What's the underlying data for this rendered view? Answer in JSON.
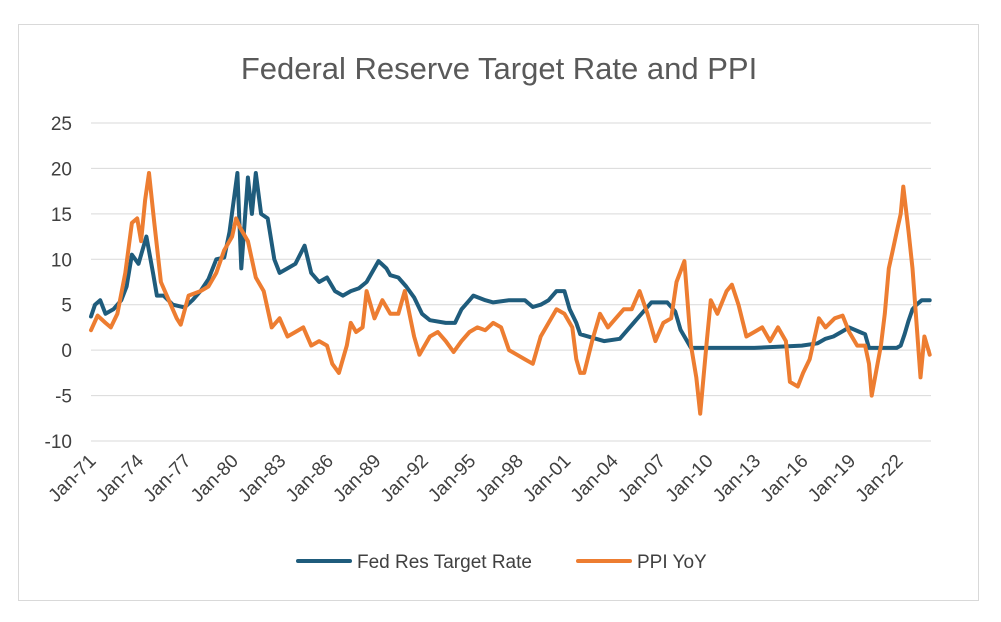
{
  "chart_data": {
    "type": "line",
    "title": "Federal Reserve Target Rate and PPI",
    "xlabel": "",
    "ylabel": "",
    "ylim": [
      -10,
      25
    ],
    "yticks": [
      25,
      20,
      15,
      10,
      5,
      0,
      -5,
      -10
    ],
    "xticks": [
      "Jan-71",
      "Jan-74",
      "Jan-77",
      "Jan-80",
      "Jan-83",
      "Jan-86",
      "Jan-89",
      "Jan-92",
      "Jan-95",
      "Jan-98",
      "Jan-01",
      "Jan-04",
      "Jan-07",
      "Jan-10",
      "Jan-13",
      "Jan-16",
      "Jan-19",
      "Jan-22"
    ],
    "grid": true,
    "legend_position": "bottom",
    "series": [
      {
        "name": "Fed Res Target Rate",
        "color": "#1f5c7c",
        "points": [
          [
            "1971-01",
            3.7
          ],
          [
            "1971-04",
            5.0
          ],
          [
            "1971-08",
            5.5
          ],
          [
            "1971-12",
            4.0
          ],
          [
            "1972-06",
            4.5
          ],
          [
            "1972-12",
            5.5
          ],
          [
            "1973-04",
            7.0
          ],
          [
            "1973-08",
            10.5
          ],
          [
            "1974-01",
            9.5
          ],
          [
            "1974-07",
            12.5
          ],
          [
            "1974-12",
            8.5
          ],
          [
            "1975-03",
            6.0
          ],
          [
            "1975-08",
            6.0
          ],
          [
            "1976-03",
            5.0
          ],
          [
            "1976-12",
            4.7
          ],
          [
            "1977-06",
            5.5
          ],
          [
            "1977-12",
            6.5
          ],
          [
            "1978-06",
            7.8
          ],
          [
            "1978-12",
            10.0
          ],
          [
            "1979-06",
            10.2
          ],
          [
            "1979-10",
            13.0
          ],
          [
            "1980-04",
            19.5
          ],
          [
            "1980-07",
            9.0
          ],
          [
            "1980-12",
            19.0
          ],
          [
            "1981-03",
            15.0
          ],
          [
            "1981-06",
            19.5
          ],
          [
            "1981-10",
            15.0
          ],
          [
            "1982-03",
            14.5
          ],
          [
            "1982-08",
            10.0
          ],
          [
            "1982-12",
            8.5
          ],
          [
            "1983-06",
            9.0
          ],
          [
            "1983-12",
            9.5
          ],
          [
            "1984-07",
            11.5
          ],
          [
            "1984-12",
            8.5
          ],
          [
            "1985-06",
            7.5
          ],
          [
            "1985-12",
            8.0
          ],
          [
            "1986-06",
            6.5
          ],
          [
            "1986-12",
            6.0
          ],
          [
            "1987-06",
            6.5
          ],
          [
            "1987-12",
            6.8
          ],
          [
            "1988-06",
            7.5
          ],
          [
            "1989-03",
            9.8
          ],
          [
            "1989-09",
            9.0
          ],
          [
            "1989-12",
            8.25
          ],
          [
            "1990-06",
            8.0
          ],
          [
            "1990-12",
            7.0
          ],
          [
            "1991-06",
            5.8
          ],
          [
            "1991-12",
            4.0
          ],
          [
            "1992-06",
            3.3
          ],
          [
            "1993-06",
            3.0
          ],
          [
            "1994-01",
            3.0
          ],
          [
            "1994-06",
            4.5
          ],
          [
            "1994-12",
            5.5
          ],
          [
            "1995-03",
            6.0
          ],
          [
            "1995-12",
            5.5
          ],
          [
            "1996-06",
            5.25
          ],
          [
            "1997-06",
            5.5
          ],
          [
            "1998-06",
            5.5
          ],
          [
            "1998-12",
            4.75
          ],
          [
            "1999-06",
            5.0
          ],
          [
            "1999-12",
            5.5
          ],
          [
            "2000-06",
            6.5
          ],
          [
            "2000-12",
            6.5
          ],
          [
            "2001-04",
            4.5
          ],
          [
            "2001-09",
            3.0
          ],
          [
            "2001-12",
            1.75
          ],
          [
            "2002-12",
            1.25
          ],
          [
            "2003-06",
            1.0
          ],
          [
            "2004-06",
            1.25
          ],
          [
            "2004-12",
            2.25
          ],
          [
            "2005-06",
            3.25
          ],
          [
            "2005-12",
            4.25
          ],
          [
            "2006-06",
            5.25
          ],
          [
            "2007-06",
            5.25
          ],
          [
            "2007-12",
            4.25
          ],
          [
            "2008-04",
            2.25
          ],
          [
            "2008-12",
            0.25
          ],
          [
            "2012-12",
            0.25
          ],
          [
            "2015-12",
            0.5
          ],
          [
            "2016-12",
            0.75
          ],
          [
            "2017-06",
            1.25
          ],
          [
            "2017-12",
            1.5
          ],
          [
            "2018-06",
            2.0
          ],
          [
            "2018-12",
            2.5
          ],
          [
            "2019-08",
            2.0
          ],
          [
            "2019-12",
            1.75
          ],
          [
            "2020-03",
            0.25
          ],
          [
            "2021-12",
            0.25
          ],
          [
            "2022-03",
            0.5
          ],
          [
            "2022-06",
            1.75
          ],
          [
            "2022-09",
            3.25
          ],
          [
            "2022-12",
            4.5
          ],
          [
            "2023-03",
            5.0
          ],
          [
            "2023-07",
            5.5
          ],
          [
            "2024-01",
            5.5
          ]
        ]
      },
      {
        "name": "PPI YoY",
        "color": "#ed7d31",
        "points": [
          [
            "1971-01",
            2.2
          ],
          [
            "1971-06",
            3.8
          ],
          [
            "1971-12",
            3.0
          ],
          [
            "1972-04",
            2.5
          ],
          [
            "1972-09",
            4.0
          ],
          [
            "1973-03",
            8.5
          ],
          [
            "1973-08",
            14.0
          ],
          [
            "1973-12",
            14.5
          ],
          [
            "1974-03",
            12.0
          ],
          [
            "1974-06",
            16.5
          ],
          [
            "1974-09",
            19.5
          ],
          [
            "1975-01",
            14.0
          ],
          [
            "1975-06",
            7.5
          ],
          [
            "1975-12",
            5.5
          ],
          [
            "1976-06",
            3.5
          ],
          [
            "1976-09",
            2.8
          ],
          [
            "1977-03",
            6.0
          ],
          [
            "1977-12",
            6.5
          ],
          [
            "1978-06",
            7.0
          ],
          [
            "1978-12",
            8.5
          ],
          [
            "1979-06",
            11.0
          ],
          [
            "1979-12",
            12.5
          ],
          [
            "1980-03",
            14.5
          ],
          [
            "1980-06",
            13.5
          ],
          [
            "1980-12",
            12.0
          ],
          [
            "1981-06",
            8.0
          ],
          [
            "1981-12",
            6.5
          ],
          [
            "1982-06",
            2.5
          ],
          [
            "1982-12",
            3.5
          ],
          [
            "1983-06",
            1.5
          ],
          [
            "1983-12",
            2.0
          ],
          [
            "1984-06",
            2.5
          ],
          [
            "1984-12",
            0.5
          ],
          [
            "1985-06",
            1.0
          ],
          [
            "1985-12",
            0.5
          ],
          [
            "1986-04",
            -1.5
          ],
          [
            "1986-09",
            -2.5
          ],
          [
            "1987-03",
            0.5
          ],
          [
            "1987-06",
            3.0
          ],
          [
            "1987-10",
            2.0
          ],
          [
            "1988-03",
            2.5
          ],
          [
            "1988-06",
            6.5
          ],
          [
            "1988-12",
            3.5
          ],
          [
            "1989-06",
            5.5
          ],
          [
            "1989-12",
            4.0
          ],
          [
            "1990-06",
            4.0
          ],
          [
            "1990-11",
            6.5
          ],
          [
            "1991-06",
            1.5
          ],
          [
            "1991-10",
            -0.5
          ],
          [
            "1992-06",
            1.5
          ],
          [
            "1992-12",
            2.0
          ],
          [
            "1993-06",
            1.0
          ],
          [
            "1993-12",
            -0.2
          ],
          [
            "1994-06",
            1.0
          ],
          [
            "1994-12",
            2.0
          ],
          [
            "1995-06",
            2.5
          ],
          [
            "1995-12",
            2.2
          ],
          [
            "1996-06",
            3.0
          ],
          [
            "1996-12",
            2.5
          ],
          [
            "1997-06",
            0.0
          ],
          [
            "1997-12",
            -0.5
          ],
          [
            "1998-06",
            -1.0
          ],
          [
            "1998-12",
            -1.5
          ],
          [
            "1999-06",
            1.5
          ],
          [
            "1999-12",
            3.0
          ],
          [
            "2000-06",
            4.5
          ],
          [
            "2000-12",
            4.0
          ],
          [
            "2001-06",
            2.5
          ],
          [
            "2001-09",
            -1.0
          ],
          [
            "2001-12",
            -2.5
          ],
          [
            "2002-03",
            -2.5
          ],
          [
            "2002-09",
            1.0
          ],
          [
            "2003-03",
            4.0
          ],
          [
            "2003-09",
            2.5
          ],
          [
            "2004-03",
            3.5
          ],
          [
            "2004-09",
            4.5
          ],
          [
            "2005-03",
            4.5
          ],
          [
            "2005-09",
            6.5
          ],
          [
            "2006-03",
            4.0
          ],
          [
            "2006-09",
            1.0
          ],
          [
            "2007-03",
            3.0
          ],
          [
            "2007-09",
            3.5
          ],
          [
            "2008-01",
            7.5
          ],
          [
            "2008-07",
            9.8
          ],
          [
            "2008-12",
            0.5
          ],
          [
            "2009-04",
            -3.0
          ],
          [
            "2009-07",
            -7.0
          ],
          [
            "2009-12",
            1.0
          ],
          [
            "2010-03",
            5.5
          ],
          [
            "2010-08",
            4.0
          ],
          [
            "2011-03",
            6.5
          ],
          [
            "2011-07",
            7.2
          ],
          [
            "2011-12",
            5.0
          ],
          [
            "2012-06",
            1.5
          ],
          [
            "2012-12",
            2.0
          ],
          [
            "2013-06",
            2.5
          ],
          [
            "2013-12",
            1.0
          ],
          [
            "2014-06",
            2.5
          ],
          [
            "2014-12",
            1.0
          ],
          [
            "2015-03",
            -3.5
          ],
          [
            "2015-09",
            -4.0
          ],
          [
            "2016-01",
            -2.5
          ],
          [
            "2016-06",
            -1.0
          ],
          [
            "2017-01",
            3.5
          ],
          [
            "2017-06",
            2.5
          ],
          [
            "2018-01",
            3.5
          ],
          [
            "2018-07",
            3.8
          ],
          [
            "2018-12",
            2.0
          ],
          [
            "2019-06",
            0.5
          ],
          [
            "2019-12",
            0.5
          ],
          [
            "2020-03",
            -1.5
          ],
          [
            "2020-05",
            -5.0
          ],
          [
            "2020-12",
            0.5
          ],
          [
            "2021-03",
            4.0
          ],
          [
            "2021-06",
            9.0
          ],
          [
            "2021-09",
            11.0
          ],
          [
            "2021-12",
            13.0
          ],
          [
            "2022-03",
            15.0
          ],
          [
            "2022-05",
            18.0
          ],
          [
            "2022-09",
            13.0
          ],
          [
            "2022-12",
            9.0
          ],
          [
            "2023-03",
            3.0
          ],
          [
            "2023-06",
            -3.0
          ],
          [
            "2023-09",
            1.5
          ],
          [
            "2023-12",
            0.0
          ],
          [
            "2024-01",
            -0.5
          ]
        ]
      }
    ]
  }
}
